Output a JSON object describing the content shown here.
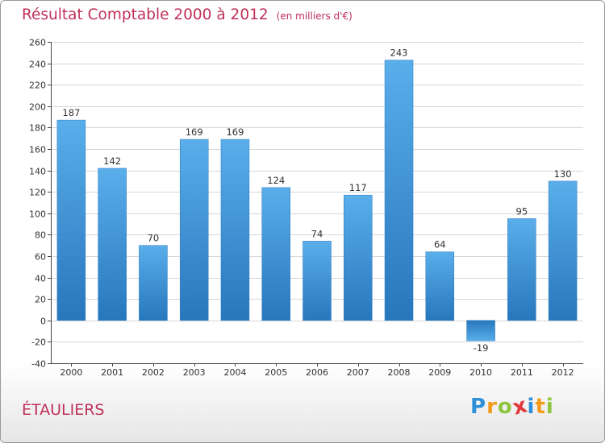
{
  "page": {
    "title": "Résultat Comptable 2000 à 2012",
    "subtitle": "(en milliers d'€)",
    "place": "ÉTAULIERS"
  },
  "logo": {
    "letters": [
      "P",
      "r",
      "o",
      "x",
      "i",
      "t",
      "i"
    ],
    "colors": [
      "#2f8fd8",
      "#f29a1a",
      "#8cc63f",
      "#e23a3a",
      "#2f8fd8",
      "#f29a1a",
      "#8cc63f"
    ]
  },
  "chart_data": {
    "type": "bar",
    "title": "Résultat Comptable 2000 à 2012",
    "ylabel": "(en milliers d'€)",
    "xlabel": "",
    "categories": [
      "2000",
      "2001",
      "2002",
      "2003",
      "2004",
      "2005",
      "2006",
      "2007",
      "2008",
      "2009",
      "2010",
      "2011",
      "2012"
    ],
    "values": [
      187,
      142,
      70,
      169,
      169,
      124,
      74,
      117,
      243,
      64,
      -19,
      95,
      130
    ],
    "ylim": [
      -40,
      260
    ],
    "ytick_step": 20,
    "grid": true,
    "bar_color": "#3d9ee0",
    "bar_color_dark": "#2a78c0"
  }
}
